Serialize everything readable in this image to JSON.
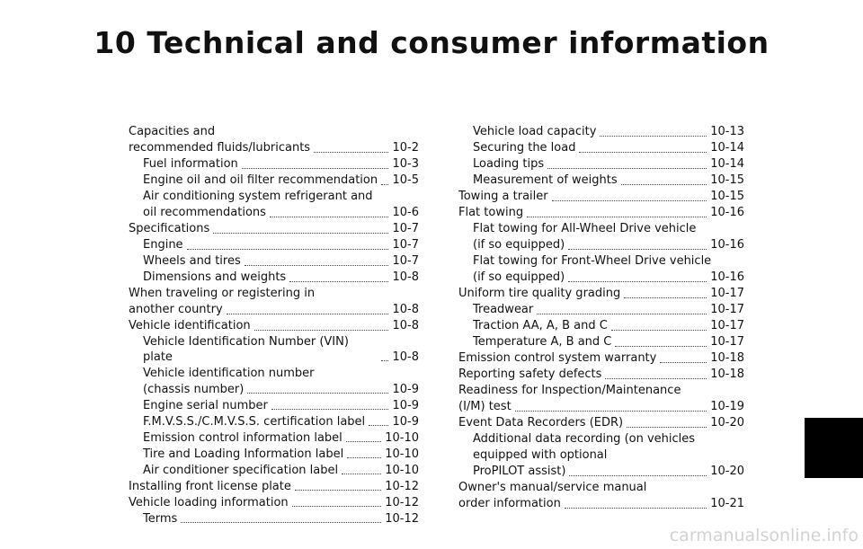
{
  "title": "10 Technical and consumer information",
  "left_entries": [
    {
      "label": "Capacities and",
      "page": "",
      "level": 0,
      "dots": false
    },
    {
      "label": "recommended fluids/lubricants",
      "page": "10-2",
      "level": 0,
      "dots": true
    },
    {
      "label": "Fuel information",
      "page": "10-3",
      "level": 1,
      "dots": true
    },
    {
      "label": "Engine oil and oil filter recommendation",
      "page": "10-5",
      "level": 1,
      "dots": true
    },
    {
      "label": "Air conditioning system refrigerant and",
      "page": "",
      "level": 1,
      "dots": false
    },
    {
      "label": "oil recommendations",
      "page": "10-6",
      "level": 1,
      "dots": true
    },
    {
      "label": "Specifications",
      "page": "10-7",
      "level": 0,
      "dots": true
    },
    {
      "label": "Engine",
      "page": "10-7",
      "level": 1,
      "dots": true
    },
    {
      "label": "Wheels and tires",
      "page": "10-7",
      "level": 1,
      "dots": true
    },
    {
      "label": "Dimensions and weights",
      "page": "10-8",
      "level": 1,
      "dots": true
    },
    {
      "label": "When traveling or registering in",
      "page": "",
      "level": 0,
      "dots": false
    },
    {
      "label": "another country",
      "page": "10-8",
      "level": 0,
      "dots": true
    },
    {
      "label": "Vehicle identification",
      "page": "10-8",
      "level": 0,
      "dots": true
    },
    {
      "label": "Vehicle Identification Number (VIN) plate",
      "page": "10-8",
      "level": 1,
      "dots": true
    },
    {
      "label": "Vehicle identification number",
      "page": "",
      "level": 1,
      "dots": false
    },
    {
      "label": "(chassis number)",
      "page": "10-9",
      "level": 1,
      "dots": true
    },
    {
      "label": "Engine serial number",
      "page": "10-9",
      "level": 1,
      "dots": true
    },
    {
      "label": "F.M.V.S.S./C.M.V.S.S. certification label",
      "page": "10-9",
      "level": 1,
      "dots": true
    },
    {
      "label": "Emission control information label",
      "page": "10-10",
      "level": 1,
      "dots": true
    },
    {
      "label": "Tire and Loading Information label",
      "page": "10-10",
      "level": 1,
      "dots": true
    },
    {
      "label": "Air conditioner specification label",
      "page": "10-10",
      "level": 1,
      "dots": true
    },
    {
      "label": "Installing front license plate",
      "page": "10-12",
      "level": 0,
      "dots": true
    },
    {
      "label": "Vehicle loading information",
      "page": "10-12",
      "level": 0,
      "dots": true
    },
    {
      "label": "Terms",
      "page": "10-12",
      "level": 1,
      "dots": true
    }
  ],
  "right_entries": [
    {
      "label": "Vehicle load capacity",
      "page": "10-13",
      "level": 1,
      "dots": true
    },
    {
      "label": "Securing the load",
      "page": "10-14",
      "level": 1,
      "dots": true
    },
    {
      "label": "Loading tips",
      "page": "10-14",
      "level": 1,
      "dots": true
    },
    {
      "label": "Measurement of weights",
      "page": "10-15",
      "level": 1,
      "dots": true
    },
    {
      "label": "Towing a trailer",
      "page": "10-15",
      "level": 0,
      "dots": true
    },
    {
      "label": "Flat towing",
      "page": "10-16",
      "level": 0,
      "dots": true
    },
    {
      "label": "Flat towing for All-Wheel Drive vehicle",
      "page": "",
      "level": 1,
      "dots": false
    },
    {
      "label": "(if so equipped)",
      "page": "10-16",
      "level": 1,
      "dots": true
    },
    {
      "label": "Flat towing for Front-Wheel Drive vehicle",
      "page": "",
      "level": 1,
      "dots": false
    },
    {
      "label": "(if so equipped)",
      "page": "10-16",
      "level": 1,
      "dots": true
    },
    {
      "label": "Uniform tire quality grading",
      "page": "10-17",
      "level": 0,
      "dots": true
    },
    {
      "label": "Treadwear",
      "page": "10-17",
      "level": 1,
      "dots": true
    },
    {
      "label": "Traction AA, A, B and C",
      "page": "10-17",
      "level": 1,
      "dots": true
    },
    {
      "label": "Temperature A, B and C",
      "page": "10-17",
      "level": 1,
      "dots": true
    },
    {
      "label": "Emission control system warranty",
      "page": "10-18",
      "level": 0,
      "dots": true
    },
    {
      "label": "Reporting safety defects",
      "page": "10-18",
      "level": 0,
      "dots": true
    },
    {
      "label": "Readiness for Inspection/Maintenance",
      "page": "",
      "level": 0,
      "dots": false
    },
    {
      "label": "(I/M) test",
      "page": "10-19",
      "level": 0,
      "dots": true
    },
    {
      "label": "Event Data Recorders (EDR)",
      "page": "10-20",
      "level": 0,
      "dots": true
    },
    {
      "label": "Additional data recording (on vehicles",
      "page": "",
      "level": 1,
      "dots": false
    },
    {
      "label": "equipped with optional",
      "page": "",
      "level": 1,
      "dots": false
    },
    {
      "label": "ProPILOT assist)",
      "page": "10-20",
      "level": 1,
      "dots": true
    },
    {
      "label": "Owner's manual/service manual",
      "page": "",
      "level": 0,
      "dots": false
    },
    {
      "label": "order information",
      "page": "10-21",
      "level": 0,
      "dots": true
    }
  ],
  "watermark": "carmanualsonline.info",
  "colors": {
    "background": "#ffffff",
    "text": "#111111",
    "tab": "#000000"
  }
}
